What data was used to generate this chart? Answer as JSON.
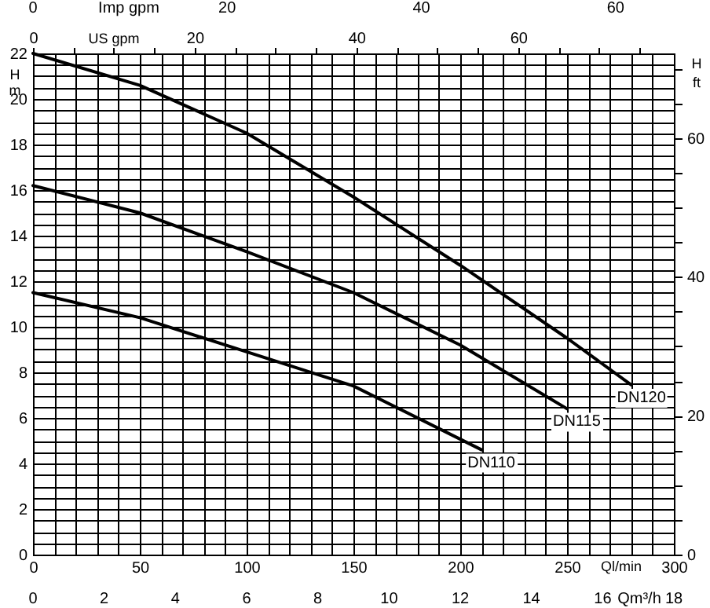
{
  "chart_data": {
    "type": "line",
    "grid": true,
    "xlabel": "Ql/min",
    "xlim": [
      0,
      300
    ],
    "xticks": [
      0,
      {
        "value": 10,
        "label": null
      },
      {
        "value": 20,
        "label": null
      },
      {
        "value": 30,
        "label": null
      },
      {
        "value": 40,
        "label": null
      },
      50,
      {
        "value": 60,
        "label": null
      },
      {
        "value": 70,
        "label": null
      },
      {
        "value": 80,
        "label": null
      },
      {
        "value": 90,
        "label": null
      },
      100,
      {
        "value": 110,
        "label": null
      },
      {
        "value": 120,
        "label": null
      },
      {
        "value": 130,
        "label": null
      },
      {
        "value": 140,
        "label": null
      },
      150,
      {
        "value": 160,
        "label": null
      },
      {
        "value": 170,
        "label": null
      },
      {
        "value": 180,
        "label": null
      },
      {
        "value": 190,
        "label": null
      },
      200,
      {
        "value": 210,
        "label": null
      },
      {
        "value": 220,
        "label": null
      },
      {
        "value": 230,
        "label": null
      },
      {
        "value": 240,
        "label": null
      },
      250,
      {
        "value": 260,
        "label": null
      },
      {
        "value": 270,
        "label": null
      },
      {
        "value": 280,
        "label": null
      },
      {
        "value": 290,
        "label": null
      },
      300
    ],
    "x2label": "US gpm",
    "x2lim": [
      0,
      79.25
    ],
    "x2ticks": [
      0,
      {
        "value": 5,
        "label": null
      },
      {
        "value": 10,
        "label": null
      },
      {
        "value": 15,
        "label": null
      },
      20,
      {
        "value": 25,
        "label": null
      },
      {
        "value": 30,
        "label": null
      },
      {
        "value": 35,
        "label": null
      },
      40,
      {
        "value": 45,
        "label": null
      },
      {
        "value": 50,
        "label": null
      },
      {
        "value": 55,
        "label": null
      },
      60,
      {
        "value": 65,
        "label": null
      },
      {
        "value": 70,
        "label": null
      },
      {
        "value": 75,
        "label": null
      }
    ],
    "ylabel": "H m",
    "ylim": [
      0,
      22
    ],
    "yticks": [
      0,
      {
        "value": 0.5,
        "label": null
      },
      {
        "value": 1,
        "label": null
      },
      {
        "value": 1.5,
        "label": null
      },
      2,
      {
        "value": 2.5,
        "label": null
      },
      {
        "value": 3,
        "label": null
      },
      {
        "value": 3.5,
        "label": null
      },
      4,
      {
        "value": 4.5,
        "label": null
      },
      {
        "value": 5,
        "label": null
      },
      {
        "value": 5.5,
        "label": null
      },
      6,
      {
        "value": 6.5,
        "label": null
      },
      {
        "value": 7,
        "label": null
      },
      {
        "value": 7.5,
        "label": null
      },
      8,
      {
        "value": 8.5,
        "label": null
      },
      {
        "value": 9,
        "label": null
      },
      {
        "value": 9.5,
        "label": null
      },
      10,
      {
        "value": 10.5,
        "label": null
      },
      {
        "value": 11,
        "label": null
      },
      {
        "value": 11.5,
        "label": null
      },
      12,
      {
        "value": 12.5,
        "label": null
      },
      {
        "value": 13,
        "label": null
      },
      {
        "value": 13.5,
        "label": null
      },
      14,
      {
        "value": 14.5,
        "label": null
      },
      {
        "value": 15,
        "label": null
      },
      {
        "value": 15.5,
        "label": null
      },
      16,
      {
        "value": 16.5,
        "label": null
      },
      {
        "value": 17,
        "label": null
      },
      {
        "value": 17.5,
        "label": null
      },
      18,
      {
        "value": 18.5,
        "label": null
      },
      {
        "value": 19,
        "label": null
      },
      {
        "value": 19.5,
        "label": null
      },
      20,
      {
        "value": 20.5,
        "label": null
      },
      {
        "value": 21,
        "label": null
      },
      {
        "value": 21.5,
        "label": null
      },
      22
    ],
    "y2label": "H ft",
    "y2lim": [
      0,
      72.18
    ],
    "y2ticks": [
      0,
      {
        "value": 5,
        "label": null
      },
      {
        "value": 10,
        "label": null
      },
      {
        "value": 15,
        "label": null
      },
      20,
      {
        "value": 25,
        "label": null
      },
      {
        "value": 30,
        "label": null
      },
      {
        "value": 35,
        "label": null
      },
      40,
      {
        "value": 45,
        "label": null
      },
      {
        "value": 50,
        "label": null
      },
      {
        "value": 55,
        "label": null
      },
      60,
      {
        "value": 65,
        "label": null
      },
      {
        "value": 70,
        "label": null
      }
    ],
    "annotations": [
      "Imp gpm",
      "0",
      "20",
      "40",
      "60",
      "Qm³/h",
      "0",
      "2",
      "4",
      "6",
      "8",
      "10",
      "12",
      "14",
      "16",
      "18"
    ],
    "series": [
      {
        "name": "DN120",
        "color": "#000000",
        "x": [
          0,
          50,
          100,
          150,
          200,
          250,
          280
        ],
        "values": [
          22,
          20.6,
          18.5,
          15.7,
          12.7,
          9.5,
          7.45
        ]
      },
      {
        "name": "DN115",
        "color": "#000000",
        "x": [
          0,
          50,
          100,
          150,
          200,
          250
        ],
        "values": [
          16.2,
          15.0,
          13.3,
          11.5,
          9.2,
          6.4
        ]
      },
      {
        "name": "DN110",
        "color": "#000000",
        "x": [
          0,
          50,
          100,
          150,
          210
        ],
        "values": [
          11.5,
          10.4,
          8.9,
          7.4,
          4.6
        ]
      }
    ]
  }
}
